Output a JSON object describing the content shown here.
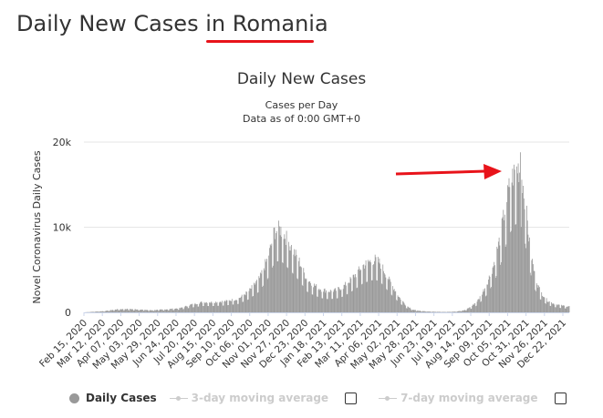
{
  "page": {
    "title_prefix": "Daily New Cases in ",
    "title_country": "Romania"
  },
  "chart_data": {
    "type": "bar",
    "title": "Daily New Cases",
    "subtitle": "Cases per Day",
    "subtitle2": "Data as of 0:00 GMT+0",
    "ylabel": "Novel Coronavirus Daily Cases",
    "ylim": [
      0,
      20000
    ],
    "y_ticks": [
      "0",
      "10k",
      "20k"
    ],
    "grid": true,
    "x_start": "2020-02-15",
    "x_end": "2021-12-31",
    "x_tick_labels": [
      "Feb 15, 2020",
      "Mar 12, 2020",
      "Apr 07, 2020",
      "May 03, 2020",
      "May 29, 2020",
      "Jun 24, 2020",
      "Jul 20, 2020",
      "Aug 15, 2020",
      "Sep 10, 2020",
      "Oct 06, 2020",
      "Nov 01, 2020",
      "Nov 27, 2020",
      "Dec 23, 2020",
      "Jan 18, 2021",
      "Feb 13, 2021",
      "Mar 11, 2021",
      "Apr 06, 2021",
      "May 02, 2021",
      "May 28, 2021",
      "Jun 23, 2021",
      "Jul 19, 2021",
      "Aug 14, 2021",
      "Sep 09, 2021",
      "Oct 05, 2021",
      "Oct 31, 2021",
      "Nov 26, 2021",
      "Dec 22, 2021"
    ],
    "series": [
      {
        "name": "Daily Cases",
        "color": "#999999",
        "trend_x": [
          "2020-02-15",
          "2020-03-15",
          "2020-04-01",
          "2020-04-15",
          "2020-05-01",
          "2020-05-20",
          "2020-06-10",
          "2020-06-30",
          "2020-07-15",
          "2020-07-31",
          "2020-08-15",
          "2020-09-01",
          "2020-09-20",
          "2020-10-05",
          "2020-10-20",
          "2020-11-01",
          "2020-11-10",
          "2020-11-18",
          "2020-11-25",
          "2020-12-05",
          "2020-12-15",
          "2020-12-25",
          "2021-01-05",
          "2021-01-15",
          "2021-01-25",
          "2021-02-05",
          "2021-02-15",
          "2021-02-25",
          "2021-03-05",
          "2021-03-15",
          "2021-03-25",
          "2021-04-01",
          "2021-04-08",
          "2021-04-15",
          "2021-04-25",
          "2021-05-05",
          "2021-05-15",
          "2021-05-25",
          "2021-06-05",
          "2021-06-20",
          "2021-07-10",
          "2021-07-25",
          "2021-08-05",
          "2021-08-15",
          "2021-08-25",
          "2021-09-05",
          "2021-09-15",
          "2021-09-25",
          "2021-10-01",
          "2021-10-08",
          "2021-10-15",
          "2021-10-20",
          "2021-10-25",
          "2021-10-30",
          "2021-11-05",
          "2021-11-12",
          "2021-11-20",
          "2021-11-30",
          "2021-12-10",
          "2021-12-20",
          "2021-12-31"
        ],
        "trend_y": [
          0,
          150,
          350,
          400,
          350,
          250,
          350,
          500,
          900,
          1200,
          1200,
          1300,
          1600,
          2500,
          4000,
          6500,
          9500,
          9800,
          9000,
          7500,
          6000,
          4000,
          3200,
          2700,
          2500,
          2600,
          3000,
          3800,
          4500,
          5500,
          6000,
          6200,
          5800,
          4700,
          3200,
          1800,
          800,
          300,
          150,
          80,
          50,
          100,
          250,
          700,
          1500,
          3200,
          5500,
          9000,
          12000,
          15000,
          16500,
          17000,
          16000,
          13000,
          8000,
          4500,
          2500,
          1400,
          1000,
          800,
          700
        ],
        "peak_date": "2021-10-23",
        "peak_value": 18800
      }
    ],
    "legend": [
      {
        "label": "Daily Cases",
        "enabled": true
      },
      {
        "label": "3-day moving average",
        "enabled": false
      },
      {
        "label": "7-day moving average",
        "enabled": false
      }
    ]
  }
}
